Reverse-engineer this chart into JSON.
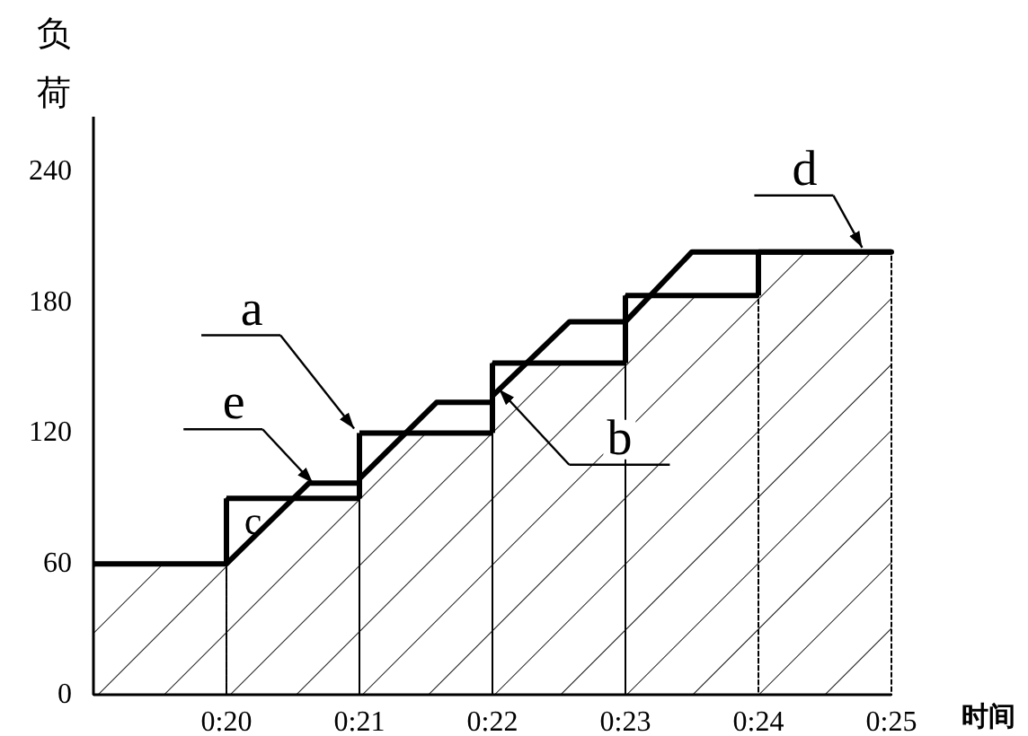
{
  "chart_data": {
    "type": "bar",
    "ylabel": "负荷",
    "xlabel": "时间",
    "xlim": [
      19,
      25
    ],
    "ylim": [
      0,
      265
    ],
    "xticks": [
      {
        "value": 20,
        "label": "0:20"
      },
      {
        "value": 21,
        "label": "0:21"
      },
      {
        "value": 22,
        "label": "0:22"
      },
      {
        "value": 23,
        "label": "0:23"
      },
      {
        "value": 24,
        "label": "0:24"
      },
      {
        "value": 25,
        "label": "0:25"
      }
    ],
    "yticks": [
      0,
      60,
      120,
      180,
      240
    ],
    "series": [
      {
        "color": "#000000",
        "x": [
          19.5,
          20.5,
          21.5,
          22.5,
          23.5,
          24.5
        ],
        "values": [
          60,
          90,
          120,
          152,
          183,
          203
        ]
      },
      {
        "type": "line",
        "color": "#000000",
        "x": [
          20,
          20.62,
          21,
          21,
          21.58,
          22,
          22,
          22.58,
          23,
          23,
          23.5,
          25
        ],
        "values": [
          60,
          97,
          97,
          99,
          134,
          134,
          137,
          171,
          171,
          171,
          203,
          203
        ]
      }
    ],
    "annotations": [
      {
        "text": "a",
        "x": 20.96,
        "y": 122
      },
      {
        "text": "b",
        "x": 22.05,
        "y": 140
      },
      {
        "text": "c",
        "x": 20.2,
        "y": 90
      },
      {
        "text": "d",
        "x": 24.78,
        "y": 205
      },
      {
        "text": "e",
        "x": 20.65,
        "y": 97
      }
    ]
  }
}
